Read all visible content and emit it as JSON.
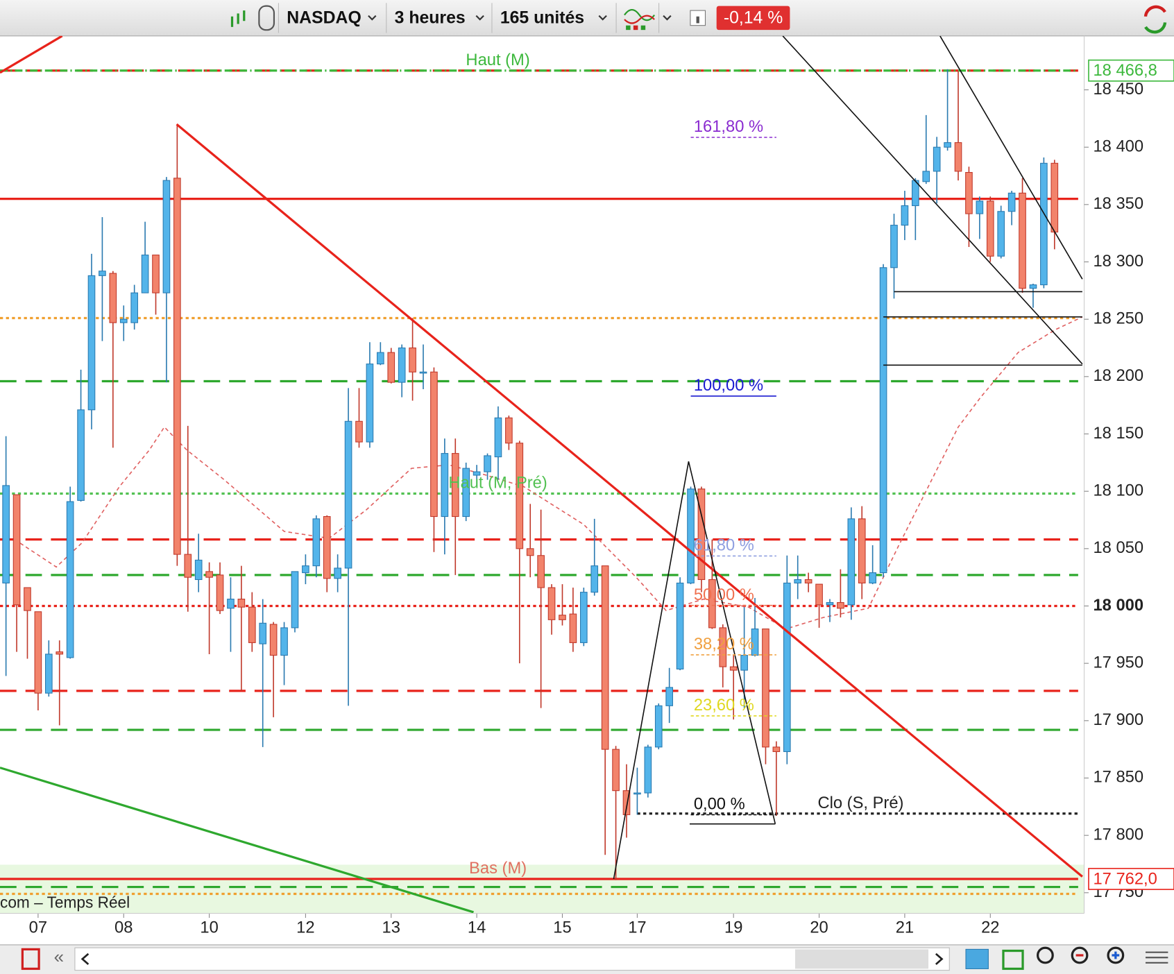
{
  "toolbar": {
    "instrument": "NASDAQ",
    "period": "3 heures",
    "units": "165 unités",
    "change": "-0,14 %"
  },
  "chart_data": {
    "type": "candlestick",
    "source": "com – Temps Réel",
    "categories": [
      null,
      null,
      null,
      "07",
      null,
      null,
      null,
      null,
      null,
      null,
      null,
      "08",
      null,
      null,
      null,
      null,
      null,
      null,
      null,
      "10",
      null,
      null,
      null,
      null,
      null,
      null,
      null,
      null,
      "12",
      null,
      null,
      null,
      null,
      null,
      null,
      null,
      "13",
      null,
      null,
      null,
      null,
      null,
      null,
      null,
      "14",
      null,
      null,
      null,
      null,
      null,
      null,
      null,
      "15",
      null,
      null,
      null,
      null,
      null,
      null,
      "17",
      null,
      null,
      null,
      null,
      null,
      null,
      null,
      null,
      "19",
      null,
      null,
      null,
      null,
      null,
      null,
      null,
      "20",
      null,
      null,
      null,
      null,
      null,
      null,
      null,
      "21",
      null,
      null,
      null,
      null,
      null,
      null,
      null,
      "22",
      null,
      null,
      null,
      null,
      null,
      null
    ],
    "open": [
      18020,
      18097,
      18016,
      17995,
      17924,
      17960,
      17955,
      18092,
      18171,
      18288,
      18290,
      18247,
      18247,
      18273,
      18306,
      18273,
      18373,
      18045,
      18023,
      18030,
      18027,
      17998,
      18006,
      17999,
      17967,
      17984,
      17957,
      17981,
      18029,
      18035,
      18078,
      18024,
      18033,
      18161,
      18143,
      18211,
      18221,
      18195,
      18225,
      18203,
      18204,
      18078,
      18133,
      18078,
      18114,
      18117,
      18130,
      18164,
      18142,
      18050,
      18044,
      18016,
      17992,
      17993,
      17968,
      18012,
      18035,
      17875,
      17839,
      17836,
      17837,
      17877,
      17913,
      17945,
      18020,
      18102,
      18023,
      17981,
      17947,
      17944,
      17957,
      17980,
      17877,
      17873,
      18020,
      18023,
      18019,
      18001,
      18003,
      18001,
      18076,
      18020,
      18029,
      18295,
      18332,
      18349,
      18370,
      18379,
      18400,
      18404,
      18378,
      18342,
      18353,
      18305,
      18344,
      18360,
      18277,
      18280,
      18386
    ],
    "high": [
      18148,
      18097,
      18016,
      17995,
      17970,
      17970,
      18104,
      18206,
      18307,
      18339,
      18292,
      18262,
      18280,
      18335,
      18306,
      18374,
      18420,
      18157,
      18063,
      18038,
      18038,
      18025,
      18035,
      18012,
      18006,
      17986,
      17986,
      18030,
      18045,
      18079,
      18079,
      18045,
      18190,
      18190,
      18230,
      18230,
      18225,
      18228,
      18251,
      18228,
      18208,
      18146,
      18146,
      18125,
      18123,
      18133,
      18174,
      18166,
      18144,
      18089,
      18084,
      18019,
      18019,
      18016,
      18016,
      18076,
      18035,
      17878,
      17862,
      17859,
      17879,
      17915,
      17946,
      18025,
      18104,
      18104,
      18058,
      17984,
      17957,
      17999,
      18007,
      17980,
      17882,
      18044,
      18044,
      18029,
      18019,
      18006,
      18032,
      18086,
      18087,
      18053,
      18298,
      18342,
      18362,
      18373,
      18428,
      18409,
      18468,
      18466,
      18383,
      18357,
      18357,
      18349,
      18362,
      18373,
      18281,
      18391,
      18389
    ],
    "low": [
      17939,
      17960,
      17954,
      17909,
      17921,
      17896,
      17954,
      18091,
      18154,
      18231,
      18138,
      18231,
      18241,
      18273,
      18254,
      18195,
      18035,
      17995,
      18012,
      17958,
      17993,
      17960,
      17926,
      17960,
      17877,
      17903,
      17931,
      17977,
      18019,
      18025,
      18012,
      18012,
      17913,
      18138,
      18138,
      18210,
      18194,
      18182,
      18179,
      18189,
      18047,
      18045,
      18027,
      18074,
      18104,
      18110,
      18110,
      18136,
      17950,
      18025,
      17911,
      17975,
      17983,
      17960,
      17965,
      18009,
      17783,
      17761,
      17798,
      17818,
      17833,
      17875,
      17898,
      17944,
      18019,
      18012,
      17980,
      17929,
      17901,
      17911,
      17956,
      17862,
      17817,
      17862,
      18006,
      18012,
      17981,
      17986,
      17990,
      17988,
      18006,
      18019,
      18025,
      18268,
      18319,
      18319,
      18368,
      18351,
      18397,
      18371,
      18313,
      18320,
      18300,
      18303,
      18332,
      18273,
      18260,
      18277,
      18311
    ],
    "close": [
      18105,
      18001,
      17996,
      17924,
      17958,
      17958,
      18091,
      18171,
      18288,
      18292,
      18247,
      18250,
      18273,
      18306,
      18273,
      18371,
      18045,
      18025,
      18040,
      18025,
      17996,
      18006,
      17999,
      17968,
      17985,
      17957,
      17981,
      18030,
      18035,
      18076,
      18024,
      18033,
      18161,
      18143,
      18211,
      18221,
      18195,
      18225,
      18204,
      18204,
      18078,
      18133,
      18078,
      18120,
      18117,
      18131,
      18164,
      18142,
      18050,
      18044,
      18016,
      17988,
      17988,
      17968,
      18012,
      18035,
      17875,
      17839,
      17818,
      17837,
      17877,
      17913,
      17929,
      18020,
      18102,
      18023,
      17981,
      17947,
      17944,
      17957,
      17980,
      17877,
      17873,
      18020,
      18023,
      18020,
      18001,
      18003,
      17998,
      18076,
      18020,
      18029,
      18295,
      18332,
      18349,
      18371,
      18379,
      18400,
      18404,
      18379,
      18342,
      18353,
      18305,
      18344,
      18360,
      18277,
      18280,
      18386,
      18326
    ],
    "up_color": "#53b4ea",
    "down_color": "#f2836b",
    "xlim": [
      -0.56,
      100.77
    ],
    "ylim": [
      17732,
      18497
    ],
    "yticks": [
      {
        "value": 17750,
        "label": "17 750"
      },
      {
        "value": 17800,
        "label": "17 800"
      },
      {
        "value": 17850,
        "label": "17 850"
      },
      {
        "value": 17900,
        "label": "17 900"
      },
      {
        "value": 17950,
        "label": "17 950"
      },
      {
        "value": 18000,
        "label": "18 000"
      },
      {
        "value": 18050,
        "label": "18 050"
      },
      {
        "value": 18100,
        "label": "18 100"
      },
      {
        "value": 18150,
        "label": "18 150"
      },
      {
        "value": 18200,
        "label": "18 200"
      },
      {
        "value": 18250,
        "label": "18 250"
      },
      {
        "value": 18300,
        "label": "18 300"
      },
      {
        "value": 18350,
        "label": "18 350"
      },
      {
        "value": 18400,
        "label": "18 400"
      },
      {
        "value": 18450,
        "label": "18 450"
      }
    ],
    "bold_round_thousands": true,
    "levels": [
      {
        "value": 18466.8,
        "color": "#e8231b",
        "dash": "dashed"
      },
      {
        "value": 18466.8,
        "color": "#3cb83c",
        "dash": "dashdot",
        "label": "Haut (M)"
      },
      {
        "value": 18355,
        "color": "#e8231b",
        "dash": "solid"
      },
      {
        "value": 18251,
        "color": "#f0a030",
        "dash": "dotted"
      },
      {
        "value": 18196,
        "color": "#2ea82e",
        "dash": "dashed"
      },
      {
        "value": 18098,
        "color": "#52c152",
        "dash": "dotted",
        "label": "Haut (M, Pré)"
      },
      {
        "value": 18058,
        "color": "#e8231b",
        "dash": "dashed"
      },
      {
        "value": 18027,
        "color": "#2ea82e",
        "dash": "dashed"
      },
      {
        "value": 18000,
        "color": "#e8231b",
        "dash": "dotted"
      },
      {
        "value": 17926,
        "color": "#e8231b",
        "dash": "dashed"
      },
      {
        "value": 17892,
        "color": "#2ea82e",
        "dash": "dashed"
      },
      {
        "value": 17819,
        "color": "#222222",
        "dash": "dotted",
        "from": 59,
        "label": "Clo (S, Pré)"
      },
      {
        "value": 17762,
        "color": "#e8231b",
        "dash": "solid",
        "label": "Bas (M)"
      },
      {
        "value": 17755,
        "color": "#2ea82e",
        "dash": "dashed"
      },
      {
        "value": 17749,
        "color": "#f0a030",
        "dash": "dotted"
      }
    ],
    "trend_lines": [
      {
        "color": "#e8231b",
        "x": [
          15.95,
          100.6
        ],
        "values": [
          18420,
          17764
        ]
      },
      {
        "color": "#e8231b",
        "x": [
          -0.56,
          5.25
        ],
        "values": [
          18465,
          18497
        ]
      },
      {
        "color": "#2ea82e",
        "x": [
          -0.56,
          43.7
        ],
        "values": [
          17859,
          17733
        ]
      },
      {
        "color": "#111111",
        "x": [
          72.6,
          100.6
        ],
        "values": [
          18497,
          18211
        ]
      },
      {
        "color": "#111111",
        "x": [
          87.3,
          100.6
        ],
        "values": [
          18497,
          18285
        ]
      },
      {
        "color": "#111111",
        "x": [
          56.8,
          63.8,
          71.9
        ],
        "values": [
          17762,
          18126,
          17810
        ]
      },
      {
        "color": "#111111",
        "x": [
          63.9,
          71.9
        ],
        "values": [
          17810,
          17810
        ]
      },
      {
        "color": "#111111",
        "x": [
          83,
          100.6
        ],
        "values": [
          18274,
          18274
        ]
      },
      {
        "color": "#111111",
        "x": [
          82,
          100.6
        ],
        "values": [
          18252,
          18252
        ]
      },
      {
        "color": "#111111",
        "x": [
          82,
          100.6
        ],
        "values": [
          18210,
          18210
        ]
      }
    ],
    "moving_average": {
      "color": "#e06060",
      "x": [
        0.8,
        4.7,
        7.1,
        10.6,
        13.4,
        14.8,
        16.9,
        20.4,
        26.0,
        30.2,
        33.7,
        37.9,
        41.4,
        44.9,
        48.4,
        54.0,
        58.9,
        61.7,
        65.2,
        69.4,
        72.9,
        76.4,
        80.6,
        83.4,
        86.9,
        89.0,
        91.1,
        94.6,
        98.1,
        100.6
      ],
      "values": [
        18058,
        18034,
        18055,
        18104,
        18136,
        18156,
        18136,
        18110,
        18065,
        18059,
        18084,
        18120,
        18123,
        18114,
        18104,
        18071,
        18025,
        17996,
        18006,
        17999,
        17980,
        17990,
        17998,
        18052,
        18117,
        18156,
        18182,
        18221,
        18241,
        18252
      ]
    },
    "fibonacci": {
      "start": 17818,
      "end": 18183,
      "from": 64,
      "to": 72,
      "levels": [
        {
          "value": 161.8,
          "label": "161,80 %",
          "color": "#8a2bd0"
        },
        {
          "value": 100,
          "label": "100,00 %",
          "color": "#1a1ad0"
        },
        {
          "value": 61.8,
          "label": "61,80 %",
          "color": "#8f9fe0"
        },
        {
          "value": 50,
          "label": "50,00 %",
          "color": "#f07050"
        },
        {
          "value": 38.2,
          "label": "38,20 %",
          "color": "#f0a040"
        },
        {
          "value": 23.6,
          "label": "23,60 %",
          "color": "#e0d820"
        },
        {
          "value": 0,
          "label": "0,00 %",
          "color": "#111111"
        }
      ]
    },
    "price_tags": [
      {
        "value": 18466.8,
        "label": "18 466,8",
        "color": "#3cb83c"
      },
      {
        "value": 17762,
        "label": "17 762,0",
        "color": "#e8231b"
      }
    ]
  }
}
